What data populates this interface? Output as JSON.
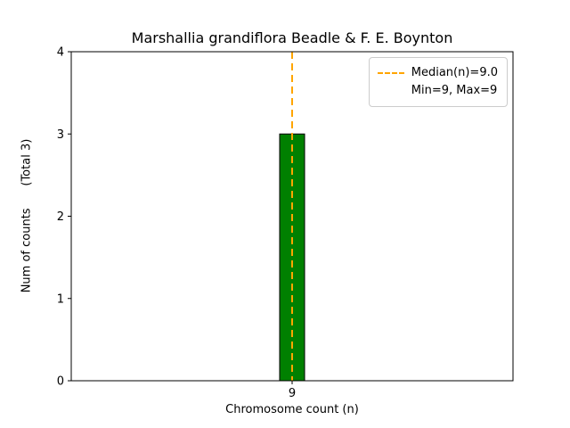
{
  "chart_data": {
    "type": "bar",
    "title": "Marshallia grandiflora Beadle & F. E. Boynton",
    "xlabel": "Chromosome count (n)",
    "ylabel": "Num of counts      (Total 3)",
    "categories": [
      "9"
    ],
    "values": [
      3
    ],
    "ylim": [
      0,
      4
    ],
    "yticks": [
      0,
      1,
      2,
      3,
      4
    ],
    "grid": false,
    "legend_position": "upper right",
    "bar_color": "#008000",
    "bar_edge_color": "#000000",
    "median_line": {
      "x": "9",
      "value": 9.0,
      "color": "#ffa500",
      "style": "dashed",
      "label": "Median(n)=9.0"
    },
    "annotation": "Min=9, Max=9"
  }
}
